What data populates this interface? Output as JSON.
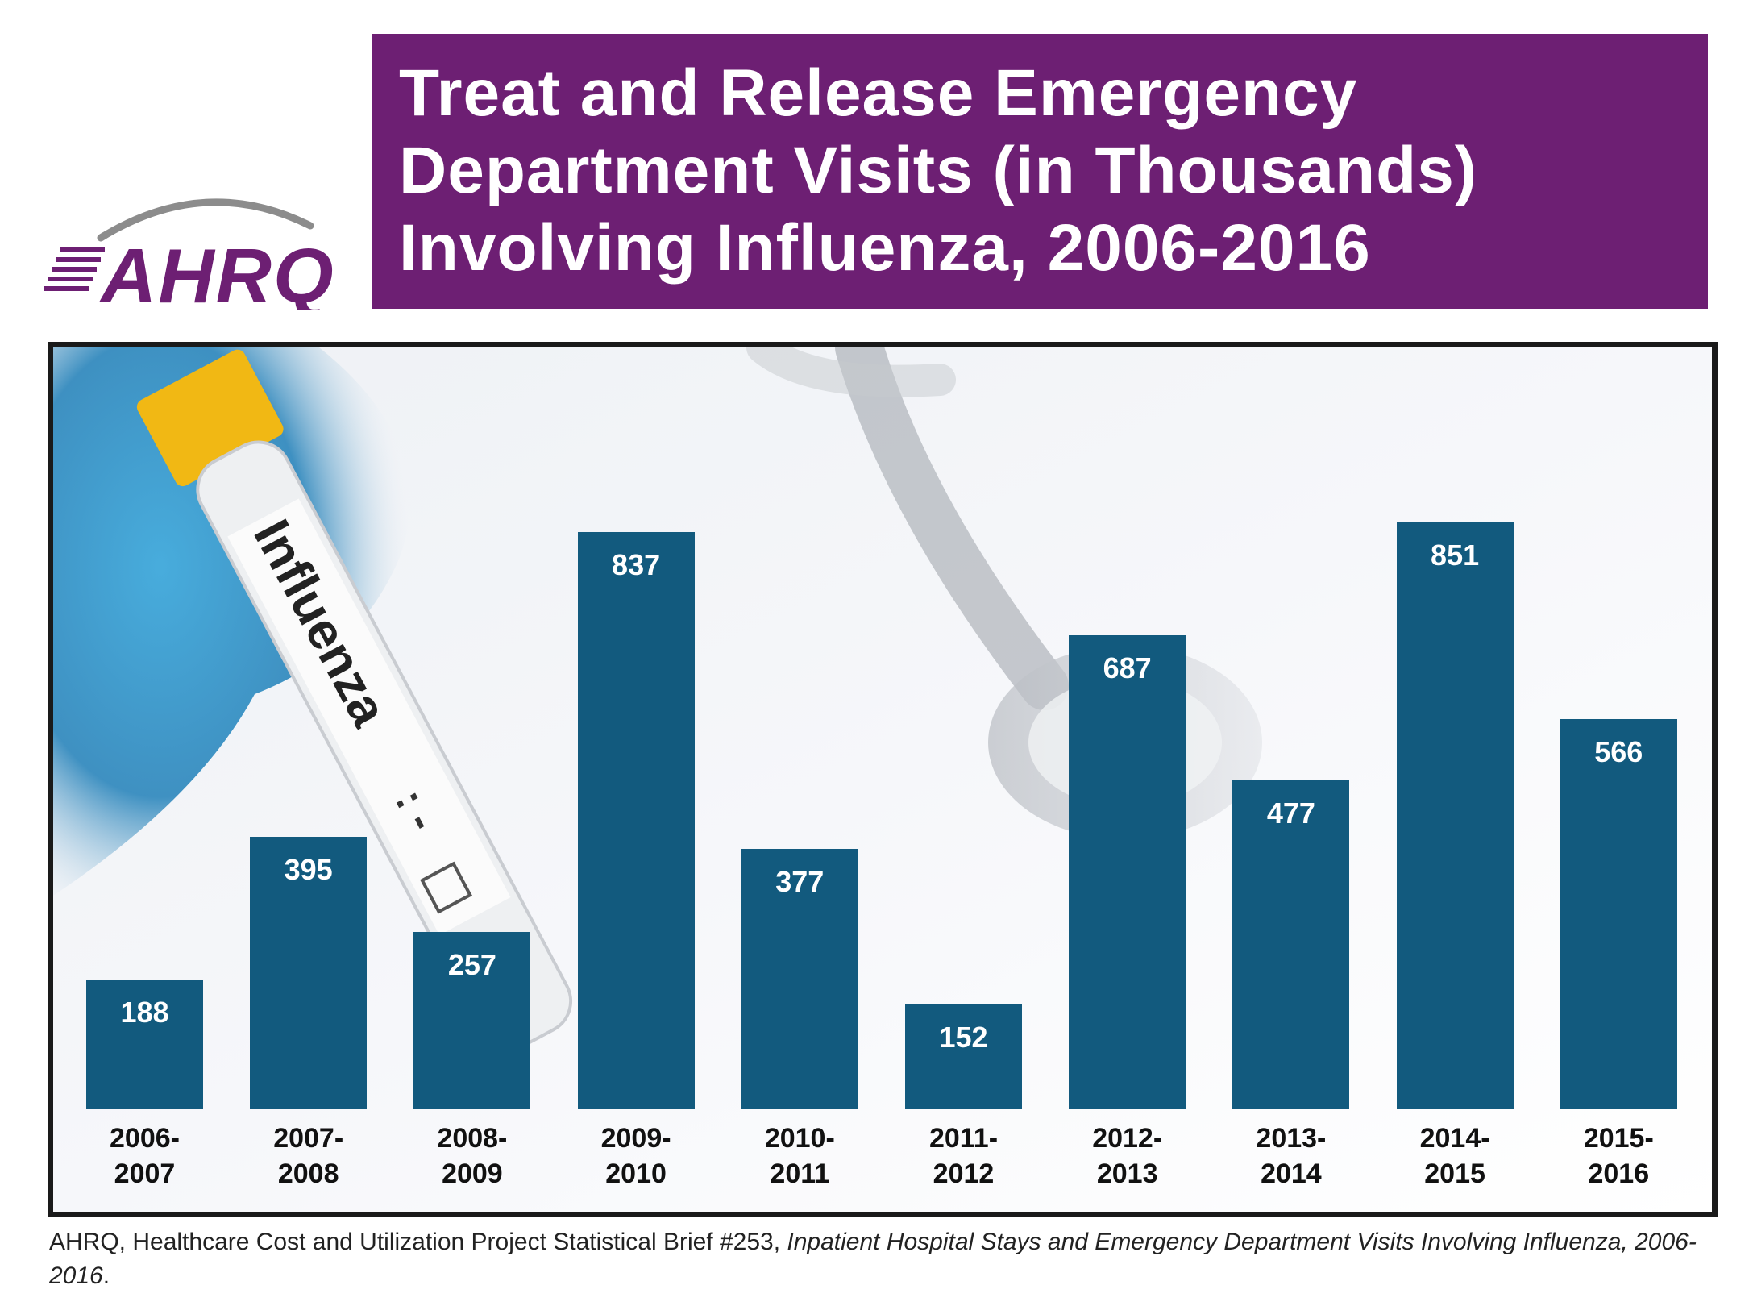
{
  "header": {
    "logo_text": "AHRQ",
    "title_lines": [
      "Treat and Release Emergency",
      "Department Visits (in Thousands)",
      "Involving Influenza, 2006-2016"
    ]
  },
  "photo": {
    "tube_label": "Influenza",
    "tube_marks": ": -"
  },
  "chart_data": {
    "type": "bar",
    "title": "Treat and Release Emergency Department Visits (in Thousands) Involving Influenza, 2006-2016",
    "categories": [
      [
        "2006-",
        "2007"
      ],
      [
        "2007-",
        "2008"
      ],
      [
        "2008-",
        "2009"
      ],
      [
        "2009-",
        "2010"
      ],
      [
        "2010-",
        "2011"
      ],
      [
        "2011-",
        "2012"
      ],
      [
        "2012-",
        "2013"
      ],
      [
        "2013-",
        "2014"
      ],
      [
        "2014-",
        "2015"
      ],
      [
        "2015-",
        "2016"
      ]
    ],
    "values": [
      188,
      395,
      257,
      837,
      377,
      152,
      687,
      477,
      851,
      566
    ],
    "xlabel": "",
    "ylabel": "",
    "ylim": [
      0,
      880
    ],
    "grid": false,
    "bar_color": "#125a7e"
  },
  "source": {
    "plain": "AHRQ, Healthcare Cost and Utilization Project Statistical Brief #253, ",
    "italic": "Inpatient Hospital Stays and Emergency Department Visits Involving Influenza, 2006-2016",
    "end": "."
  },
  "colors": {
    "brand_purple": "#6d1f73",
    "bar_blue": "#125a7e"
  }
}
